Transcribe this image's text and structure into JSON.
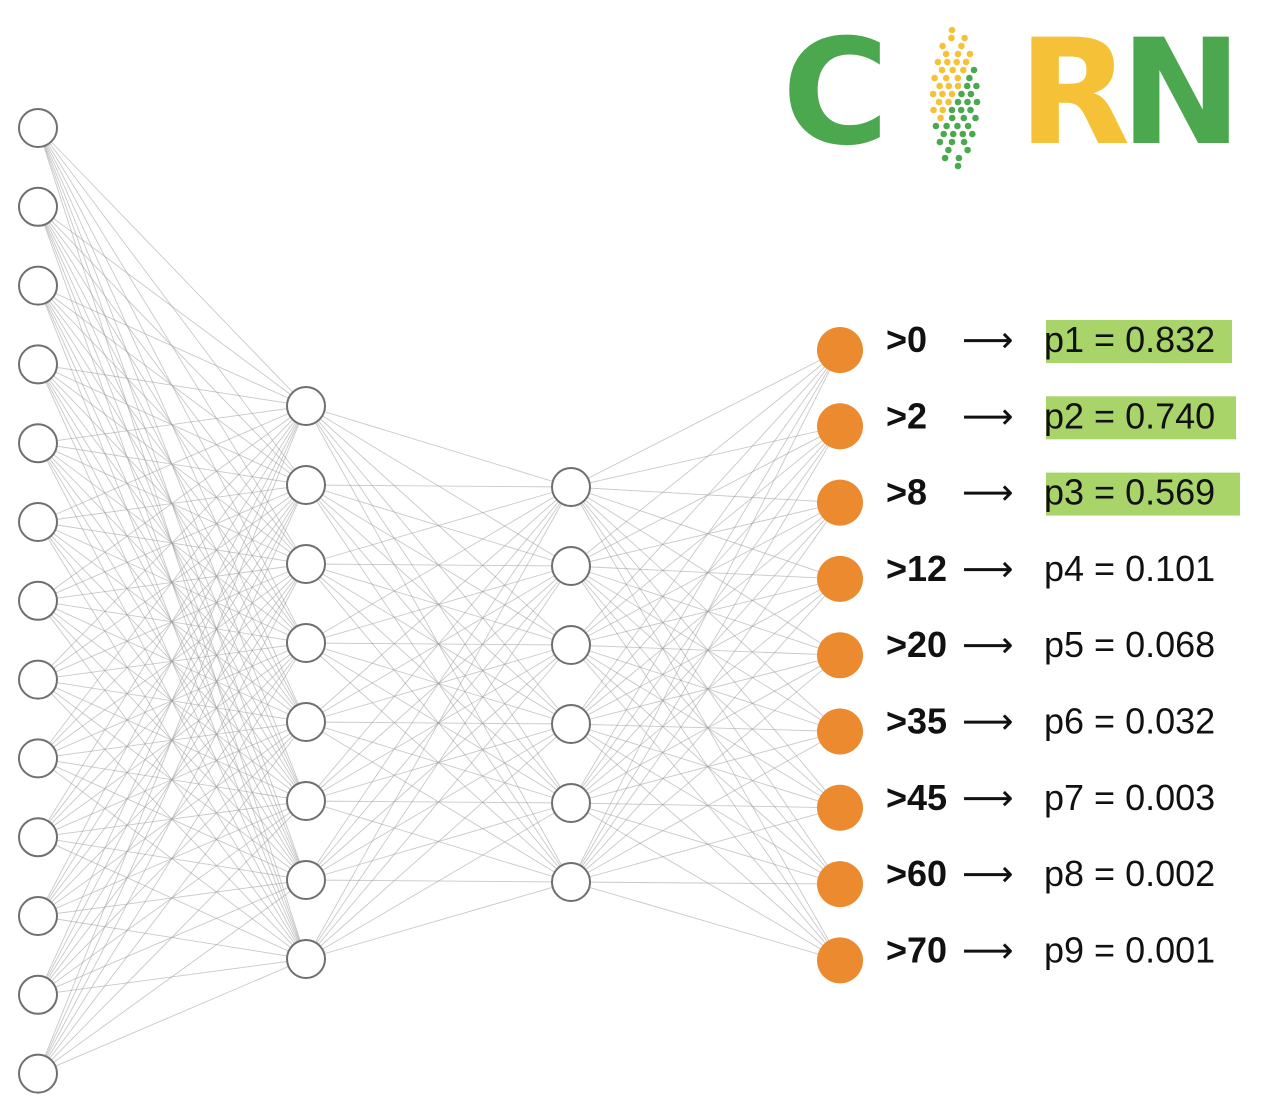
{
  "colors": {
    "background": "#ffffff",
    "edge": "#9a9a9a",
    "hidden_node_stroke": "#6f6f6f",
    "output_node": "#ec8a30",
    "highlight": "#a9d46a",
    "logo_green": "#4ba84e",
    "logo_yellow": "#f5c237",
    "text": "#111111"
  },
  "logo": {
    "letters": [
      "C",
      "R",
      "N"
    ],
    "letter_colors": [
      "#4ba84e",
      "#f5c237",
      "#4ba84e"
    ],
    "icon": "corn-cob-dots-icon"
  },
  "network": {
    "layers": [
      {
        "name": "input",
        "units": 13
      },
      {
        "name": "hidden-1",
        "units": 8
      },
      {
        "name": "hidden-2",
        "units": 6
      },
      {
        "name": "output",
        "units": 9
      }
    ]
  },
  "outputs": [
    {
      "threshold": ">0",
      "arrow": "⟶",
      "prob_label": "p1",
      "prob_value": "0.832",
      "highlighted": true
    },
    {
      "threshold": ">2",
      "arrow": "⟶",
      "prob_label": "p2",
      "prob_value": "0.740",
      "highlighted": true
    },
    {
      "threshold": ">8",
      "arrow": "⟶",
      "prob_label": "p3",
      "prob_value": "0.569",
      "highlighted": true
    },
    {
      "threshold": ">12",
      "arrow": "⟶",
      "prob_label": "p4",
      "prob_value": "0.101",
      "highlighted": false
    },
    {
      "threshold": ">20",
      "arrow": "⟶",
      "prob_label": "p5",
      "prob_value": "0.068",
      "highlighted": false
    },
    {
      "threshold": ">35",
      "arrow": "⟶",
      "prob_label": "p6",
      "prob_value": "0.032",
      "highlighted": false
    },
    {
      "threshold": ">45",
      "arrow": "⟶",
      "prob_label": "p7",
      "prob_value": "0.003",
      "highlighted": false
    },
    {
      "threshold": ">60",
      "arrow": "⟶",
      "prob_label": "p8",
      "prob_value": "0.002",
      "highlighted": false
    },
    {
      "threshold": ">70",
      "arrow": "⟶",
      "prob_label": "p9",
      "prob_value": "0.001",
      "highlighted": false
    }
  ]
}
